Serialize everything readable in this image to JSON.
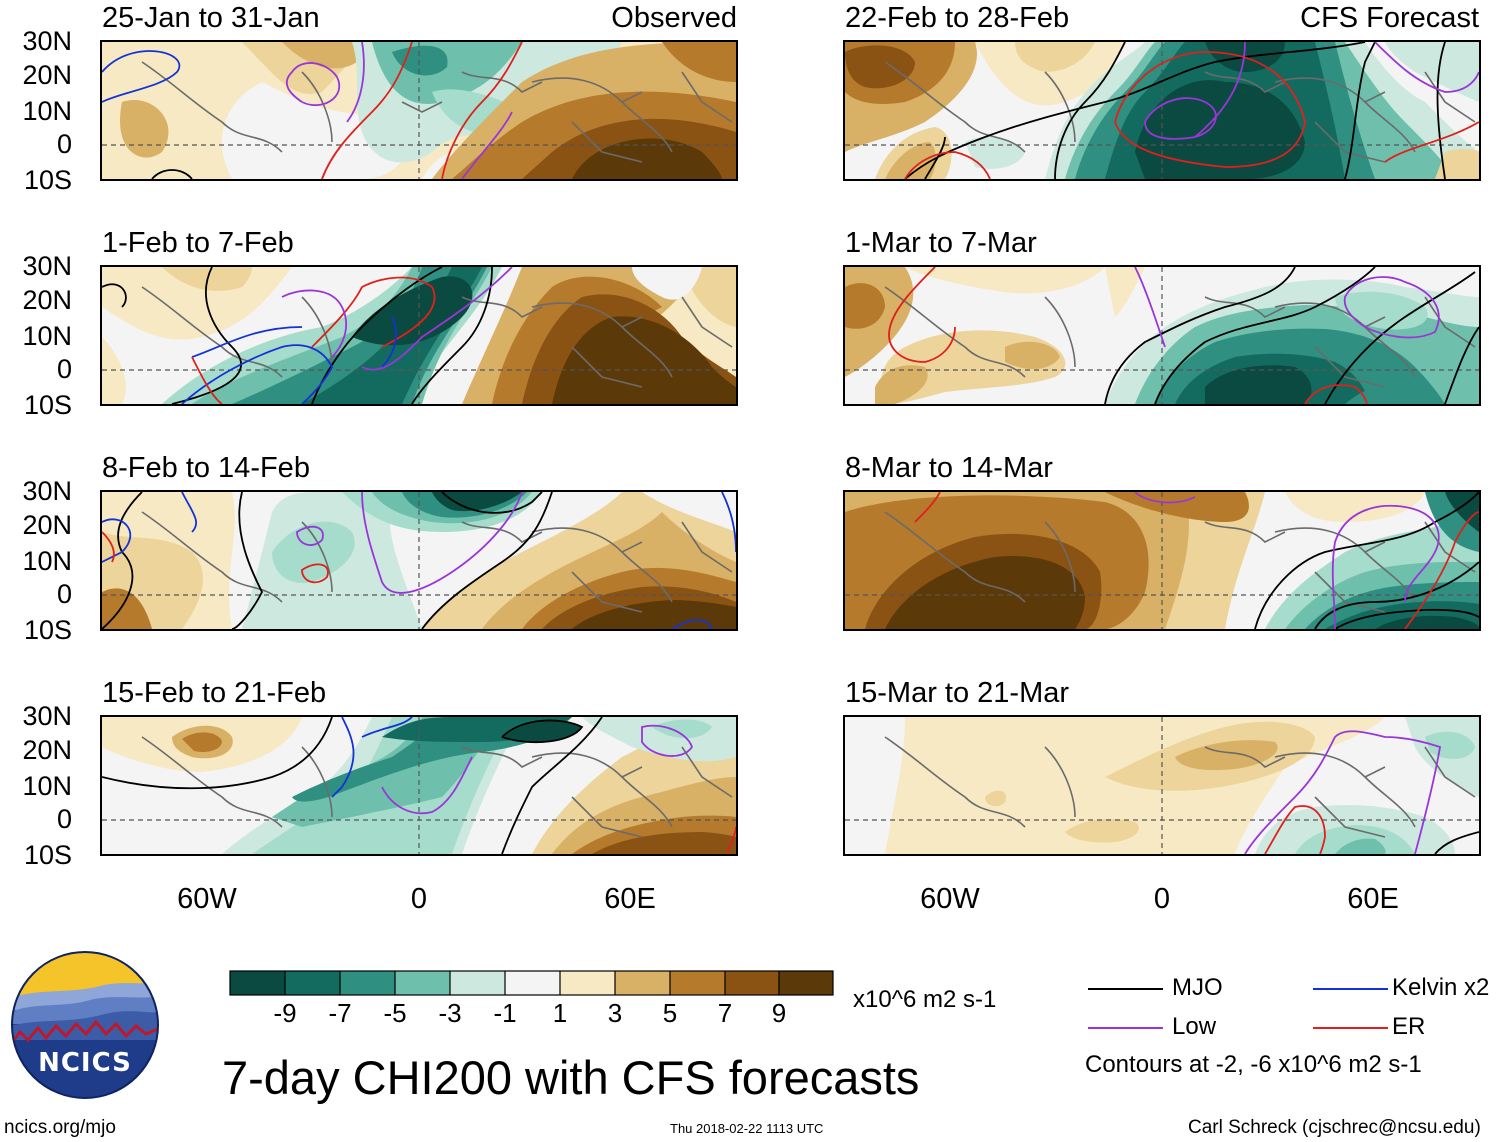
{
  "colors": {
    "brown_dark": "#5c3908",
    "brown": "#8a5314",
    "brown_mid": "#b57a2c",
    "tan": "#d9b166",
    "tan_light": "#ecd49a",
    "cream": "#f6e9c4",
    "neutral": "#f4f4f4",
    "green_light": "#cde9df",
    "green_pale": "#a6dccb",
    "green_mid": "#6ec0ac",
    "green": "#2f8f80",
    "green_dark": "#136b5f",
    "green_deep": "#0a4a40",
    "mjo": "#000000",
    "low": "#9a36d8",
    "kelvin": "#1432d6",
    "er": "#e0201c",
    "ncics_blue": "#1e3c8a",
    "ncics_yellow": "#f5c32a"
  },
  "headers": {
    "observed": "Observed",
    "forecast": "CFS Forecast"
  },
  "panels": {
    "p1": {
      "title": "25-Jan to 31-Jan"
    },
    "p2": {
      "title": "1-Feb to 7-Feb"
    },
    "p3": {
      "title": "8-Feb to 14-Feb"
    },
    "p4": {
      "title": "15-Feb to 21-Feb"
    },
    "p5": {
      "title": "22-Feb to 28-Feb"
    },
    "p6": {
      "title": "1-Mar to 7-Mar"
    },
    "p7": {
      "title": "8-Mar to 14-Mar"
    },
    "p8": {
      "title": "15-Mar to 21-Mar"
    }
  },
  "lat_labels": [
    "30N",
    "20N",
    "10N",
    "0",
    "10S"
  ],
  "lon_labels": [
    "60W",
    "0",
    "60E"
  ],
  "colorbar": {
    "labels": [
      "-9",
      "-7",
      "-5",
      "-3",
      "-1",
      "1",
      "3",
      "5",
      "7",
      "9"
    ],
    "units": "x10^6 m2 s-1"
  },
  "legend": {
    "mjo": "MJO",
    "kelvin": "Kelvin x2",
    "low": "Low",
    "er": "ER",
    "contours": "Contours at -2, -6 x10^6 m2 s-1"
  },
  "footer": {
    "logo_text": "NCICS",
    "title": "7-day CHI200 with CFS forecasts",
    "site": "ncics.org/mjo",
    "timestamp": "Thu 2018-02-22 1113 UTC",
    "credit": "Carl Schreck (cjschrec@ncsu.edu)"
  }
}
